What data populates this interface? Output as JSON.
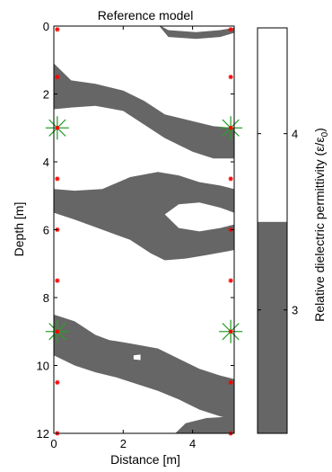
{
  "chart_data": {
    "type": "heatmap",
    "title": "Reference model",
    "xlabel": "Distance [m]",
    "ylabel": "Depth [m]",
    "xlim": [
      0,
      5.2
    ],
    "ylim": [
      12,
      0
    ],
    "xticks": [
      "0",
      "2",
      "4"
    ],
    "xtick_values": [
      0,
      2,
      4
    ],
    "yticks": [
      "0",
      "2",
      "4",
      "6",
      "8",
      "10",
      "12"
    ],
    "ytick_values": [
      0,
      2,
      4,
      6,
      8,
      10,
      12
    ],
    "colors": {
      "high": "#ffffff",
      "low": "#666666",
      "source_star": "#2ca02c",
      "receiver": "#ff0000"
    },
    "colorbar": {
      "label": "Relative dielectric permittivity (ε/ε",
      "label_sub": "0",
      "label_end": ")",
      "range": [
        2.3,
        4.6
      ],
      "threshold": 3.5,
      "ticks": [
        "3",
        "4"
      ],
      "tick_values": [
        3,
        4
      ]
    },
    "layers": [
      {
        "value": 3,
        "top": [
          [
            3.0,
            -0.05
          ],
          [
            3.3,
            0.12
          ],
          [
            4.1,
            0.18
          ],
          [
            4.8,
            0.12
          ],
          [
            5.2,
            0.05
          ]
        ],
        "bottom": [
          [
            3.0,
            -0.05
          ],
          [
            3.3,
            0.32
          ],
          [
            4.1,
            0.38
          ],
          [
            4.8,
            0.32
          ],
          [
            5.2,
            0.2
          ]
        ]
      },
      {
        "value": 3,
        "top": [
          [
            0.0,
            1.1
          ],
          [
            0.5,
            1.6
          ],
          [
            1.2,
            1.7
          ],
          [
            2.0,
            1.9
          ],
          [
            2.6,
            2.2
          ],
          [
            3.2,
            2.6
          ],
          [
            4.0,
            2.8
          ],
          [
            4.6,
            2.95
          ],
          [
            5.2,
            3.0
          ]
        ],
        "bottom": [
          [
            0.0,
            2.45
          ],
          [
            0.5,
            2.4
          ],
          [
            1.2,
            2.35
          ],
          [
            2.0,
            2.5
          ],
          [
            2.6,
            2.9
          ],
          [
            3.2,
            3.3
          ],
          [
            4.0,
            3.7
          ],
          [
            4.6,
            3.9
          ],
          [
            5.2,
            3.9
          ]
        ]
      },
      {
        "value": 3,
        "top": [
          [
            0.0,
            4.8
          ],
          [
            0.6,
            4.85
          ],
          [
            1.4,
            4.8
          ],
          [
            2.2,
            4.45
          ],
          [
            3.0,
            4.3
          ],
          [
            3.6,
            4.4
          ],
          [
            4.2,
            4.6
          ],
          [
            4.8,
            4.7
          ],
          [
            5.2,
            4.8
          ]
        ],
        "bottom": [
          [
            0.0,
            5.5
          ],
          [
            0.6,
            5.7
          ],
          [
            1.4,
            6.0
          ],
          [
            2.2,
            6.3
          ],
          [
            2.8,
            6.7
          ],
          [
            3.2,
            6.9
          ],
          [
            3.8,
            6.85
          ],
          [
            4.4,
            6.75
          ],
          [
            5.2,
            6.6
          ]
        ]
      },
      {
        "value": 3,
        "top": [
          [
            0.0,
            8.5
          ],
          [
            0.6,
            8.7
          ],
          [
            1.2,
            9.1
          ],
          [
            1.6,
            9.25
          ],
          [
            2.2,
            9.35
          ],
          [
            3.0,
            9.5
          ],
          [
            3.6,
            9.8
          ],
          [
            4.2,
            10.1
          ],
          [
            4.8,
            10.3
          ],
          [
            5.2,
            10.4
          ]
        ],
        "bottom": [
          [
            0.0,
            9.7
          ],
          [
            0.6,
            10.0
          ],
          [
            1.2,
            10.2
          ],
          [
            1.8,
            10.35
          ],
          [
            2.4,
            10.55
          ],
          [
            3.0,
            10.75
          ],
          [
            3.6,
            11.0
          ],
          [
            4.2,
            11.3
          ],
          [
            4.8,
            11.5
          ],
          [
            5.2,
            11.6
          ]
        ]
      },
      {
        "value": 3,
        "top": [
          [
            3.4,
            12.1
          ],
          [
            3.8,
            11.7
          ],
          [
            4.4,
            11.55
          ],
          [
            5.2,
            11.5
          ]
        ],
        "bottom": [
          [
            3.4,
            12.1
          ],
          [
            5.2,
            12.1
          ]
        ]
      }
    ],
    "inclusions": [
      {
        "value": 4,
        "top": [
          [
            3.2,
            5.55
          ],
          [
            3.6,
            5.25
          ],
          [
            4.2,
            5.2
          ],
          [
            4.8,
            5.35
          ],
          [
            5.2,
            5.5
          ]
        ],
        "bottom": [
          [
            3.2,
            5.55
          ],
          [
            3.6,
            5.95
          ],
          [
            4.2,
            6.05
          ],
          [
            4.8,
            5.95
          ],
          [
            5.2,
            5.85
          ]
        ]
      },
      {
        "value": 4,
        "top": [
          [
            2.3,
            9.7
          ],
          [
            2.5,
            9.68
          ]
        ],
        "bottom": [
          [
            2.3,
            9.82
          ],
          [
            2.5,
            9.84
          ]
        ]
      }
    ],
    "receivers": [
      {
        "x": 0.1,
        "y": 0.1
      },
      {
        "x": 0.1,
        "y": 1.5
      },
      {
        "x": 0.1,
        "y": 4.5
      },
      {
        "x": 0.1,
        "y": 6.0
      },
      {
        "x": 0.1,
        "y": 7.5
      },
      {
        "x": 0.1,
        "y": 10.5
      },
      {
        "x": 0.1,
        "y": 12.0
      },
      {
        "x": 5.1,
        "y": 0.1
      },
      {
        "x": 5.1,
        "y": 1.5
      },
      {
        "x": 5.1,
        "y": 4.5
      },
      {
        "x": 5.1,
        "y": 6.0
      },
      {
        "x": 5.1,
        "y": 7.5
      },
      {
        "x": 5.1,
        "y": 10.5
      },
      {
        "x": 5.1,
        "y": 12.0
      }
    ],
    "sources": [
      {
        "x": 0.1,
        "y": 3.0
      },
      {
        "x": 5.1,
        "y": 3.0
      },
      {
        "x": 0.1,
        "y": 9.0
      },
      {
        "x": 5.1,
        "y": 9.0
      }
    ]
  }
}
